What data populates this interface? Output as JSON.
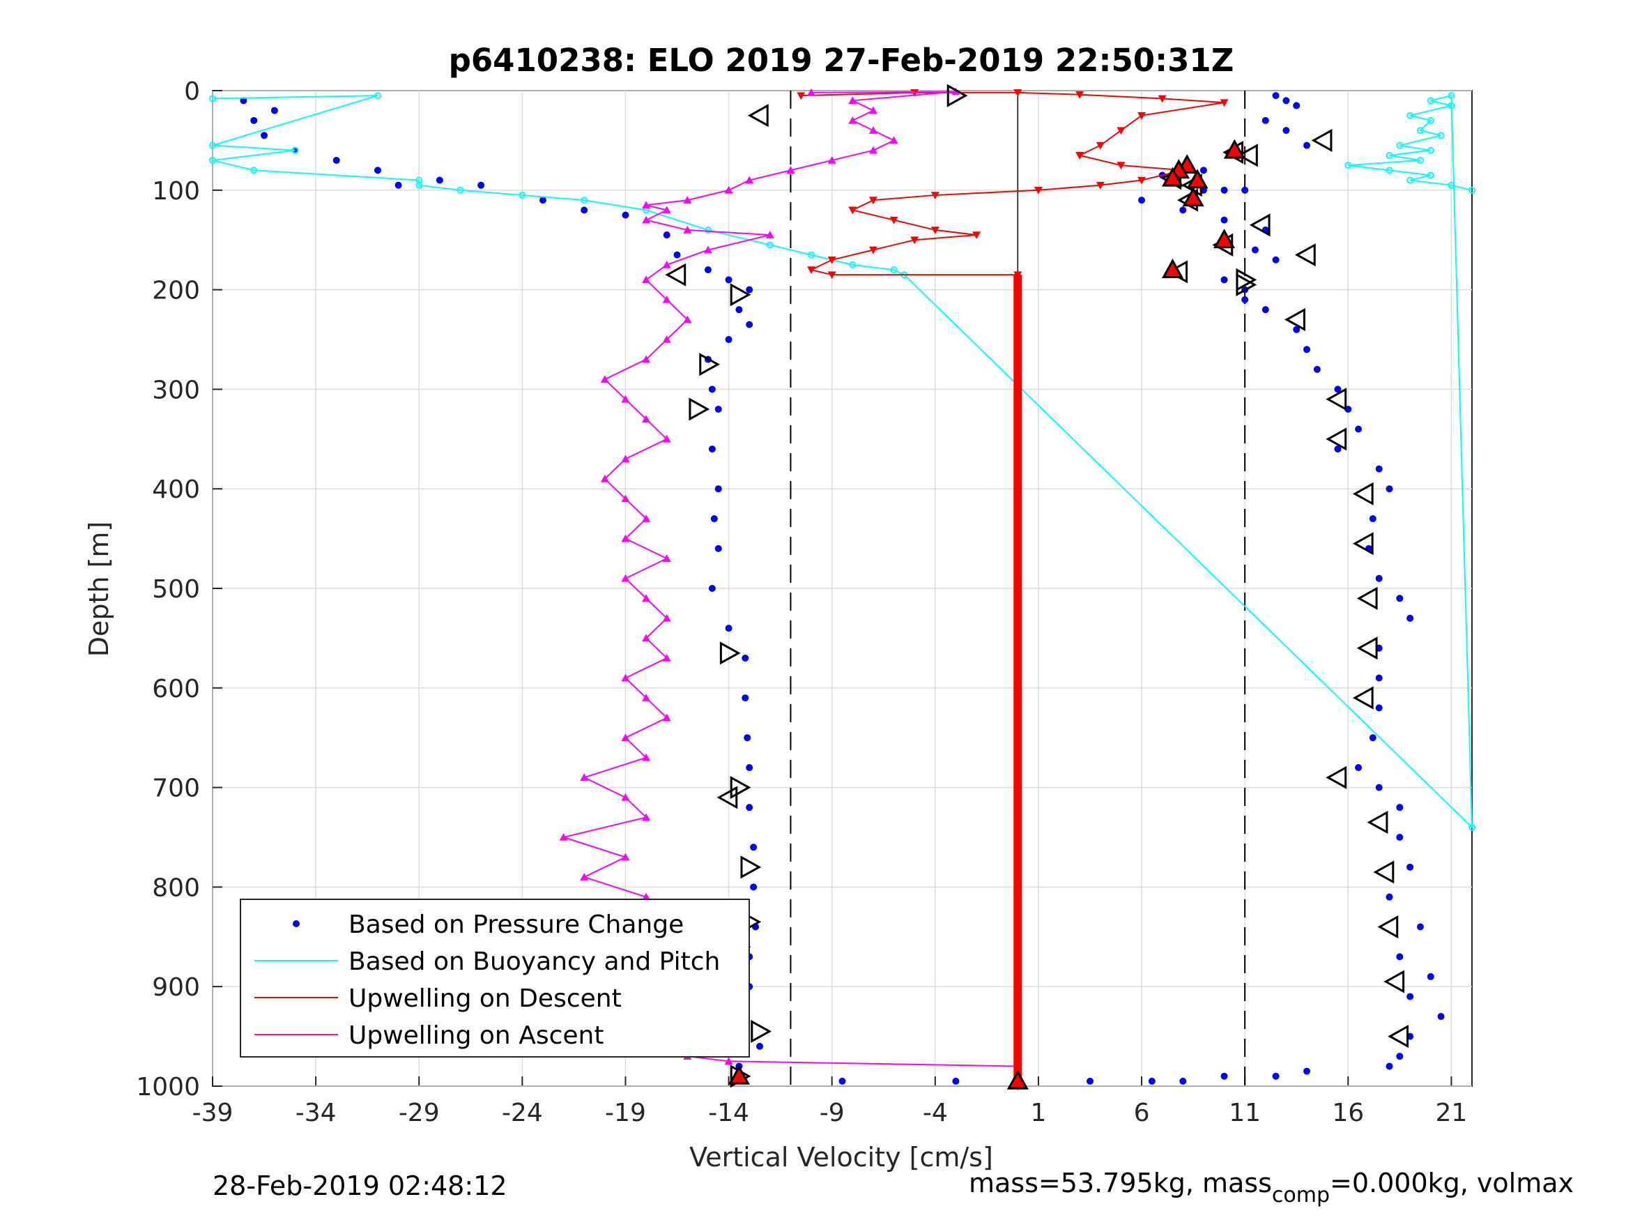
{
  "chart_data": {
    "type": "scatter",
    "title": "p6410238: ELO 2019 27-Feb-2019 22:50:31Z",
    "xlabel": "Vertical Velocity [cm/s]",
    "ylabel": "Depth [m]",
    "xlim": [
      -39,
      22
    ],
    "ylim": [
      0,
      1000
    ],
    "y_reversed": true,
    "grid": true,
    "x_ticks": [
      "-39",
      "-34",
      "-29",
      "-24",
      "-19",
      "-14",
      "-9",
      "-4",
      "1",
      "6",
      "11",
      "16",
      "21"
    ],
    "y_ticks": [
      "0",
      "100",
      "200",
      "300",
      "400",
      "500",
      "600",
      "700",
      "800",
      "900",
      "1000"
    ],
    "x_tick_values": [
      -39,
      -34,
      -29,
      -24,
      -19,
      -14,
      -9,
      -4,
      1,
      6,
      11,
      16,
      21
    ],
    "y_tick_values": [
      0,
      100,
      200,
      300,
      400,
      500,
      600,
      700,
      800,
      900,
      1000
    ],
    "vlines": {
      "dashed": [
        -11,
        11
      ],
      "solid": [
        0
      ]
    },
    "legend": {
      "placement": "bottom-left",
      "entries": [
        {
          "label": "Based on Pressure Change",
          "color": "#0000ff",
          "style": "dot"
        },
        {
          "label": "Based on Buoyancy and Pitch",
          "color": "#00ffff",
          "style": "line"
        },
        {
          "label": "Upwelling on Descent",
          "color": "#ff0000",
          "style": "line"
        },
        {
          "label": "Upwelling on Ascent",
          "color": "#ff00ff",
          "style": "line"
        }
      ]
    },
    "series": [
      {
        "color": "#0000ff",
        "marker": "dot",
        "points": [
          [
            -37.5,
            10
          ],
          [
            -36,
            20
          ],
          [
            -37,
            30
          ],
          [
            -36.5,
            45
          ],
          [
            -35,
            60
          ],
          [
            -33,
            70
          ],
          [
            -31,
            80
          ],
          [
            -30,
            95
          ],
          [
            -28,
            90
          ],
          [
            -26,
            95
          ],
          [
            -23,
            110
          ],
          [
            -21,
            120
          ],
          [
            -19,
            125
          ],
          [
            -17,
            145
          ],
          [
            -16.5,
            165
          ],
          [
            -15,
            180
          ],
          [
            -14,
            190
          ],
          [
            -13,
            200
          ],
          [
            -13.5,
            220
          ],
          [
            -13,
            235
          ],
          [
            -14,
            250
          ],
          [
            -15,
            270
          ],
          [
            -14.8,
            300
          ],
          [
            -14.5,
            320
          ],
          [
            -14.8,
            360
          ],
          [
            -14.5,
            400
          ],
          [
            -14.7,
            430
          ],
          [
            -14.5,
            460
          ],
          [
            -14.8,
            500
          ],
          [
            -14,
            540
          ],
          [
            -13.2,
            570
          ],
          [
            -13.2,
            610
          ],
          [
            -13.1,
            650
          ],
          [
            -13,
            680
          ],
          [
            -13,
            720
          ],
          [
            -12.8,
            760
          ],
          [
            -12.8,
            800
          ],
          [
            -12.7,
            840
          ],
          [
            -13,
            870
          ],
          [
            -13,
            900
          ],
          [
            -13.5,
            930
          ],
          [
            -12.5,
            960
          ],
          [
            -13.5,
            980
          ],
          [
            -13.3,
            995
          ],
          [
            -8.5,
            995
          ],
          [
            -3,
            995
          ],
          [
            3.5,
            995
          ],
          [
            6.5,
            995
          ],
          [
            8,
            995
          ],
          [
            10,
            990
          ],
          [
            12.5,
            990
          ],
          [
            14,
            985
          ],
          [
            12.5,
            5
          ],
          [
            13,
            10
          ],
          [
            13.5,
            15
          ],
          [
            12,
            30
          ],
          [
            13,
            40
          ],
          [
            14,
            55
          ],
          [
            9,
            80
          ],
          [
            7,
            85
          ],
          [
            8.5,
            95
          ],
          [
            9,
            100
          ],
          [
            10,
            100
          ],
          [
            11,
            100
          ],
          [
            6,
            110
          ],
          [
            8,
            120
          ],
          [
            10,
            130
          ],
          [
            12,
            140
          ],
          [
            11.5,
            160
          ],
          [
            12.5,
            170
          ],
          [
            10,
            190
          ],
          [
            11,
            200
          ],
          [
            11,
            210
          ],
          [
            12,
            220
          ],
          [
            13.5,
            240
          ],
          [
            14,
            260
          ],
          [
            14.5,
            280
          ],
          [
            15.5,
            300
          ],
          [
            16,
            320
          ],
          [
            16.5,
            340
          ],
          [
            15.5,
            360
          ],
          [
            17.5,
            380
          ],
          [
            18,
            400
          ],
          [
            17.2,
            430
          ],
          [
            17,
            460
          ],
          [
            17.5,
            490
          ],
          [
            18.5,
            510
          ],
          [
            19,
            530
          ],
          [
            17.5,
            560
          ],
          [
            17.5,
            590
          ],
          [
            17.5,
            620
          ],
          [
            17.2,
            650
          ],
          [
            16.5,
            680
          ],
          [
            17.5,
            700
          ],
          [
            18.5,
            720
          ],
          [
            18.5,
            750
          ],
          [
            19,
            780
          ],
          [
            18,
            810
          ],
          [
            19.5,
            840
          ],
          [
            18.5,
            870
          ],
          [
            20,
            890
          ],
          [
            19,
            910
          ],
          [
            20.5,
            930
          ],
          [
            19,
            950
          ],
          [
            18.5,
            970
          ],
          [
            18,
            980
          ]
        ]
      },
      {
        "name": "Based on Buoyancy and Pitch",
        "color": "#00ffff",
        "marker": "circle-line",
        "points": [
          [
            -39,
            8
          ],
          [
            -31,
            5
          ],
          [
            -39,
            55
          ],
          [
            -35,
            60
          ],
          [
            -39,
            70
          ],
          [
            -37,
            80
          ],
          [
            -29,
            90
          ],
          [
            -29,
            95
          ],
          [
            -27,
            100
          ],
          [
            -24,
            105
          ],
          [
            -21,
            110
          ],
          [
            -18,
            120
          ],
          [
            -15,
            140
          ],
          [
            -12,
            155
          ],
          [
            -10,
            165
          ],
          [
            -8,
            175
          ],
          [
            -6,
            180
          ],
          [
            -5.5,
            185
          ],
          [
            22,
            740
          ],
          [
            21,
            5
          ],
          [
            20,
            10
          ],
          [
            21,
            15
          ],
          [
            19,
            25
          ],
          [
            20,
            30
          ],
          [
            19.5,
            40
          ],
          [
            20.5,
            45
          ],
          [
            18.5,
            55
          ],
          [
            20,
            60
          ],
          [
            18,
            65
          ],
          [
            19.5,
            70
          ],
          [
            16,
            75
          ],
          [
            18,
            80
          ],
          [
            20,
            85
          ],
          [
            19,
            90
          ],
          [
            21,
            95
          ],
          [
            22,
            100
          ]
        ]
      },
      {
        "name": "Upwelling on Descent",
        "color": "#ff0000",
        "marker": "triangle-down-line",
        "points": [
          [
            -10.5,
            5
          ],
          [
            -5,
            2
          ],
          [
            0,
            2
          ],
          [
            3,
            4
          ],
          [
            7,
            8
          ],
          [
            10,
            12
          ],
          [
            6,
            25
          ],
          [
            5,
            40
          ],
          [
            4,
            55
          ],
          [
            3,
            65
          ],
          [
            5,
            75
          ],
          [
            8,
            80
          ],
          [
            6,
            90
          ],
          [
            4,
            95
          ],
          [
            1,
            100
          ],
          [
            -4,
            105
          ],
          [
            -7,
            110
          ],
          [
            -8,
            120
          ],
          [
            -6,
            130
          ],
          [
            -4,
            140
          ],
          [
            -2,
            145
          ],
          [
            -5,
            150
          ],
          [
            -7,
            160
          ],
          [
            -9,
            170
          ],
          [
            -10,
            180
          ],
          [
            -9,
            185
          ],
          [
            0,
            185
          ],
          [
            0,
            190
          ],
          [
            0,
            300
          ],
          [
            0,
            500
          ],
          [
            0,
            700
          ],
          [
            0,
            900
          ],
          [
            0,
            1000
          ]
        ]
      },
      {
        "name": "Upwelling on Ascent",
        "color": "#ff00ff",
        "marker": "triangle-up-line",
        "points": [
          [
            -10,
            2
          ],
          [
            -3,
            1
          ],
          [
            -8,
            10
          ],
          [
            -7,
            20
          ],
          [
            -8,
            30
          ],
          [
            -7,
            40
          ],
          [
            -6,
            50
          ],
          [
            -7,
            60
          ],
          [
            -9,
            70
          ],
          [
            -11,
            80
          ],
          [
            -13,
            90
          ],
          [
            -14,
            100
          ],
          [
            -16,
            110
          ],
          [
            -18,
            115
          ],
          [
            -17,
            120
          ],
          [
            -18,
            130
          ],
          [
            -16,
            140
          ],
          [
            -12,
            145
          ],
          [
            -15,
            160
          ],
          [
            -17,
            175
          ],
          [
            -18,
            190
          ],
          [
            -17,
            210
          ],
          [
            -16,
            230
          ],
          [
            -17,
            250
          ],
          [
            -18,
            270
          ],
          [
            -20,
            290
          ],
          [
            -19,
            310
          ],
          [
            -18,
            330
          ],
          [
            -17,
            350
          ],
          [
            -19,
            370
          ],
          [
            -20,
            390
          ],
          [
            -19,
            410
          ],
          [
            -18,
            430
          ],
          [
            -19,
            450
          ],
          [
            -17,
            470
          ],
          [
            -19,
            490
          ],
          [
            -18,
            510
          ],
          [
            -17,
            530
          ],
          [
            -18,
            550
          ],
          [
            -17,
            570
          ],
          [
            -19,
            590
          ],
          [
            -18,
            610
          ],
          [
            -17,
            630
          ],
          [
            -19,
            650
          ],
          [
            -18,
            670
          ],
          [
            -21,
            690
          ],
          [
            -19,
            710
          ],
          [
            -18,
            730
          ],
          [
            -22,
            750
          ],
          [
            -19,
            770
          ],
          [
            -21,
            790
          ],
          [
            -18,
            810
          ],
          [
            -17,
            830
          ],
          [
            -18,
            850
          ],
          [
            -17,
            870
          ],
          [
            -18,
            890
          ],
          [
            -17,
            910
          ],
          [
            -18,
            930
          ],
          [
            -17,
            950
          ],
          [
            -16,
            970
          ],
          [
            -14,
            975
          ],
          [
            0,
            980
          ]
        ]
      }
    ],
    "direction_markers": {
      "ascent_left": [
        [
          -12.5,
          25
        ],
        [
          14.8,
          50
        ],
        [
          11.2,
          65
        ],
        [
          10.5,
          62
        ],
        [
          7.5,
          88
        ],
        [
          8.5,
          95
        ],
        [
          8.3,
          110
        ],
        [
          11.8,
          135
        ],
        [
          10,
          155
        ],
        [
          14,
          165
        ],
        [
          7.8,
          182
        ],
        [
          -16.5,
          185
        ],
        [
          13.5,
          230
        ],
        [
          15.5,
          310
        ],
        [
          15.5,
          350
        ],
        [
          16.8,
          405
        ],
        [
          16.8,
          455
        ],
        [
          17,
          510
        ],
        [
          17,
          560
        ],
        [
          16.8,
          610
        ],
        [
          15.5,
          690
        ],
        [
          17.5,
          735
        ],
        [
          17.8,
          785
        ],
        [
          18,
          840
        ],
        [
          18.3,
          895
        ],
        [
          18.5,
          950
        ],
        [
          -14,
          710
        ]
      ],
      "descent_right": [
        [
          -3,
          5
        ],
        [
          -13.5,
          205
        ],
        [
          -15,
          275
        ],
        [
          -15.5,
          320
        ],
        [
          -14,
          565
        ],
        [
          -13.5,
          700
        ],
        [
          -13,
          780
        ],
        [
          -13,
          835
        ],
        [
          -13.5,
          860
        ],
        [
          -13.7,
          925
        ],
        [
          -12.5,
          945
        ],
        [
          -13.5,
          990
        ],
        [
          11,
          195
        ],
        [
          11,
          190
        ]
      ]
    },
    "red_filled_markers": [
      [
        8.2,
        75
      ],
      [
        7.8,
        80
      ],
      [
        8.7,
        90
      ],
      [
        8.5,
        108
      ],
      [
        7.5,
        88
      ],
      [
        7.5,
        180
      ],
      [
        10,
        150
      ],
      [
        10.5,
        60
      ],
      [
        -13.5,
        990
      ],
      [
        0,
        995
      ]
    ],
    "annotations": {
      "bottom_left": "28-Feb-2019 02:48:12",
      "bottom_right_prefix": "mass=53.795kg, mass",
      "bottom_right_sub": "comp",
      "bottom_right_suffix": "=0.000kg, volmax"
    }
  }
}
